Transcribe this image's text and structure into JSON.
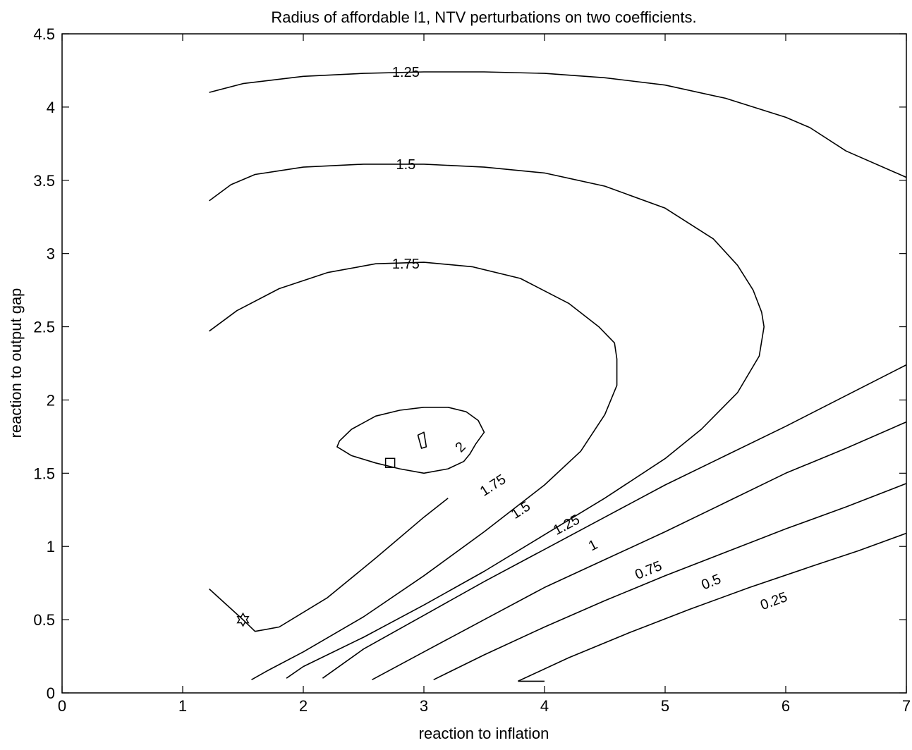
{
  "chart_data": {
    "type": "contour",
    "title": "Radius of affordable l1, NTV perturbations on two coefficients.",
    "xlabel": "reaction to inflation",
    "ylabel": "reaction to output gap",
    "xlim": [
      0,
      7
    ],
    "ylim": [
      0,
      4.5
    ],
    "xticks": [
      0,
      1,
      2,
      3,
      4,
      5,
      6,
      7
    ],
    "xtick_labels": [
      "0",
      "1",
      "2",
      "3",
      "4",
      "5",
      "6",
      "7"
    ],
    "yticks": [
      0,
      0.5,
      1,
      1.5,
      2,
      2.5,
      3,
      3.5,
      4,
      4.5
    ],
    "ytick_labels": [
      "0",
      "0.5",
      "1",
      "1.5",
      "2",
      "2.5",
      "3",
      "3.5",
      "4",
      "4.5"
    ],
    "grid": false,
    "contours": [
      {
        "level": "1.25",
        "points": [
          [
            1.22,
            4.1
          ],
          [
            1.5,
            4.16
          ],
          [
            2.0,
            4.21
          ],
          [
            2.5,
            4.23
          ],
          [
            3.0,
            4.24
          ],
          [
            3.5,
            4.24
          ],
          [
            4.0,
            4.23
          ],
          [
            4.5,
            4.2
          ],
          [
            5.0,
            4.15
          ],
          [
            5.5,
            4.06
          ],
          [
            6.0,
            3.93
          ],
          [
            6.2,
            3.86
          ],
          [
            6.5,
            3.7
          ],
          [
            7.0,
            3.52
          ]
        ]
      },
      {
        "level": "1.5",
        "points": [
          [
            1.22,
            3.36
          ],
          [
            1.4,
            3.47
          ],
          [
            1.6,
            3.54
          ],
          [
            2.0,
            3.59
          ],
          [
            2.5,
            3.61
          ],
          [
            3.0,
            3.61
          ],
          [
            3.5,
            3.59
          ],
          [
            4.0,
            3.55
          ],
          [
            4.5,
            3.46
          ],
          [
            5.0,
            3.31
          ],
          [
            5.4,
            3.1
          ],
          [
            5.6,
            2.92
          ],
          [
            5.73,
            2.75
          ],
          [
            5.8,
            2.6
          ],
          [
            5.82,
            2.5
          ],
          [
            5.78,
            2.3
          ],
          [
            5.6,
            2.05
          ],
          [
            5.3,
            1.8
          ],
          [
            5.0,
            1.6
          ],
          [
            4.5,
            1.33
          ],
          [
            4.0,
            1.08
          ],
          [
            3.5,
            0.83
          ],
          [
            3.0,
            0.6
          ],
          [
            2.5,
            0.38
          ],
          [
            2.0,
            0.18
          ],
          [
            1.86,
            0.1
          ]
        ]
      },
      {
        "level": "1.75",
        "points": [
          [
            1.22,
            2.47
          ],
          [
            1.45,
            2.61
          ],
          [
            1.8,
            2.76
          ],
          [
            2.2,
            2.87
          ],
          [
            2.6,
            2.93
          ],
          [
            3.0,
            2.94
          ],
          [
            3.4,
            2.91
          ],
          [
            3.8,
            2.83
          ],
          [
            4.2,
            2.66
          ],
          [
            4.45,
            2.5
          ],
          [
            4.58,
            2.39
          ],
          [
            4.6,
            2.28
          ],
          [
            4.6,
            2.1
          ],
          [
            4.5,
            1.9
          ],
          [
            4.3,
            1.65
          ],
          [
            4.0,
            1.42
          ],
          [
            3.5,
            1.1
          ],
          [
            3.0,
            0.8
          ],
          [
            2.5,
            0.52
          ],
          [
            2.0,
            0.28
          ],
          [
            1.7,
            0.15
          ],
          [
            1.57,
            0.09
          ]
        ]
      },
      {
        "level": "1.75",
        "points": [
          [
            1.22,
            0.71
          ],
          [
            1.5,
            0.5
          ],
          [
            1.6,
            0.42
          ],
          [
            1.8,
            0.45
          ],
          [
            2.2,
            0.65
          ],
          [
            2.6,
            0.92
          ],
          [
            3.0,
            1.2
          ],
          [
            3.2,
            1.33
          ]
        ]
      },
      {
        "level": "1.25",
        "points": [
          [
            2.16,
            0.1
          ],
          [
            2.5,
            0.3
          ],
          [
            3.0,
            0.53
          ],
          [
            3.5,
            0.76
          ],
          [
            4.0,
            0.98
          ],
          [
            4.5,
            1.2
          ],
          [
            5.0,
            1.42
          ],
          [
            5.5,
            1.62
          ],
          [
            6.0,
            1.82
          ],
          [
            6.5,
            2.03
          ],
          [
            7.0,
            2.24
          ]
        ]
      },
      {
        "level": "1",
        "points": [
          [
            2.57,
            0.09
          ],
          [
            3.0,
            0.28
          ],
          [
            3.5,
            0.5
          ],
          [
            4.0,
            0.72
          ],
          [
            4.5,
            0.91
          ],
          [
            5.0,
            1.1
          ],
          [
            5.5,
            1.3
          ],
          [
            6.0,
            1.5
          ],
          [
            6.5,
            1.67
          ],
          [
            7.0,
            1.85
          ]
        ]
      },
      {
        "level": "0.75",
        "points": [
          [
            3.08,
            0.09
          ],
          [
            3.5,
            0.26
          ],
          [
            4.0,
            0.45
          ],
          [
            4.5,
            0.63
          ],
          [
            5.0,
            0.8
          ],
          [
            5.5,
            0.96
          ],
          [
            6.0,
            1.12
          ],
          [
            6.5,
            1.27
          ],
          [
            7.0,
            1.43
          ]
        ]
      },
      {
        "level": "0.5",
        "points": [
          [
            3.78,
            0.08
          ],
          [
            4.2,
            0.24
          ],
          [
            4.7,
            0.41
          ],
          [
            5.2,
            0.57
          ],
          [
            5.7,
            0.72
          ],
          [
            6.2,
            0.86
          ],
          [
            6.6,
            0.97
          ],
          [
            7.0,
            1.09
          ]
        ]
      },
      {
        "level": "0.25",
        "points": [
          [
            3.78,
            0.08
          ],
          [
            4.0,
            0.08
          ]
        ]
      },
      {
        "level": "2",
        "closed": true,
        "points": [
          [
            2.3,
            1.72
          ],
          [
            2.4,
            1.8
          ],
          [
            2.6,
            1.89
          ],
          [
            2.8,
            1.93
          ],
          [
            3.0,
            1.95
          ],
          [
            3.2,
            1.95
          ],
          [
            3.35,
            1.92
          ],
          [
            3.45,
            1.86
          ],
          [
            3.5,
            1.78
          ],
          [
            3.43,
            1.7
          ],
          [
            3.38,
            1.63
          ],
          [
            3.33,
            1.58
          ],
          [
            3.2,
            1.53
          ],
          [
            3.0,
            1.5
          ],
          [
            2.8,
            1.53
          ],
          [
            2.6,
            1.57
          ],
          [
            2.4,
            1.62
          ],
          [
            2.28,
            1.68
          ]
        ]
      },
      {
        "level": "2",
        "closed": true,
        "points": [
          [
            2.95,
            1.76
          ],
          [
            3.0,
            1.78
          ],
          [
            3.02,
            1.68
          ],
          [
            2.98,
            1.67
          ]
        ]
      }
    ],
    "labels": [
      {
        "text": "1.25",
        "x": 2.85,
        "y": 4.24,
        "angle": 0
      },
      {
        "text": "1.5",
        "x": 2.85,
        "y": 3.61,
        "angle": 0
      },
      {
        "text": "1.75",
        "x": 2.85,
        "y": 2.93,
        "angle": 0
      },
      {
        "text": "2",
        "x": 3.3,
        "y": 1.68,
        "angle": -45
      },
      {
        "text": "1.75",
        "x": 3.57,
        "y": 1.42,
        "angle": -33
      },
      {
        "text": "1.5",
        "x": 3.8,
        "y": 1.25,
        "angle": -33
      },
      {
        "text": "1.25",
        "x": 4.18,
        "y": 1.15,
        "angle": -28
      },
      {
        "text": "1",
        "x": 4.4,
        "y": 1.01,
        "angle": -28
      },
      {
        "text": "0.75",
        "x": 4.86,
        "y": 0.84,
        "angle": -22
      },
      {
        "text": "0.5",
        "x": 5.38,
        "y": 0.76,
        "angle": -22
      },
      {
        "text": "0.25",
        "x": 5.9,
        "y": 0.63,
        "angle": -20
      }
    ],
    "markers": [
      {
        "shape": "square",
        "x": 2.72,
        "y": 1.57
      },
      {
        "shape": "hexagram",
        "x": 1.5,
        "y": 0.5
      }
    ],
    "style": {
      "line_color": "#000000",
      "background": "#ffffff"
    }
  }
}
